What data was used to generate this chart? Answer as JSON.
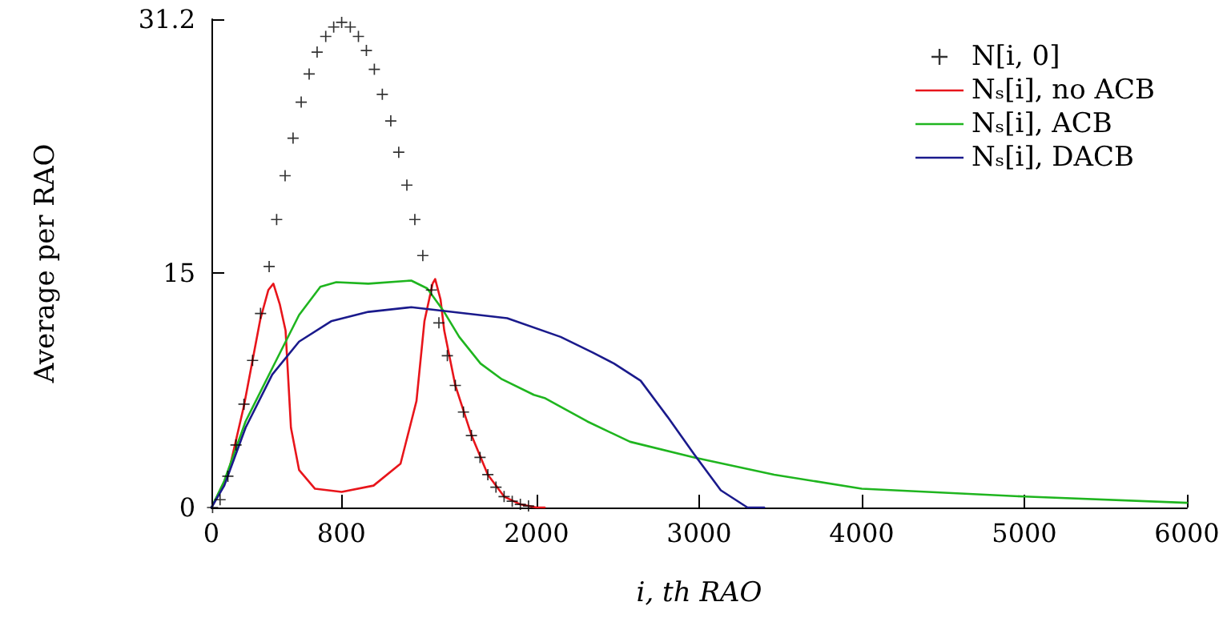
{
  "chart_data": {
    "type": "line",
    "xlabel": "i, th RAO",
    "ylabel": "Average per RAO",
    "xlim": [
      0,
      6000
    ],
    "ylim": [
      0,
      31.2
    ],
    "xticks": [
      0,
      800,
      2000,
      3000,
      4000,
      5000,
      6000
    ],
    "yticks": [
      0,
      15,
      31.2
    ],
    "grid": false,
    "legend": "top right",
    "series": [
      {
        "name": "N[i, 0]",
        "type": "scatter",
        "marker": "cross",
        "color": "#000000",
        "x": [
          7,
          53,
          101,
          151,
          200,
          253,
          302,
          355,
          401,
          453,
          502,
          552,
          601,
          650,
          703,
          752,
          801,
          854,
          904,
          953,
          1002,
          1051,
          1103,
          1152,
          1202,
          1251,
          1300,
          1353,
          1399,
          1451,
          1500,
          1550,
          1599,
          1652,
          1700,
          1750,
          1800,
          1850,
          1900,
          1950
        ],
        "values": [
          0,
          0.5,
          2,
          4,
          6.6,
          9.4,
          12.4,
          15.4,
          18.4,
          21.2,
          23.6,
          25.9,
          27.7,
          29.1,
          30.1,
          30.7,
          31,
          30.7,
          30.1,
          29.2,
          28,
          26.4,
          24.7,
          22.7,
          20.6,
          18.4,
          16.1,
          13.9,
          11.8,
          9.7,
          7.8,
          6.1,
          4.6,
          3.2,
          2.1,
          1.3,
          0.7,
          0.4,
          0.2,
          0.1
        ]
      },
      {
        "name": "Nₛ[i], no ACB",
        "color": "#e8151b",
        "x": [
          0,
          100,
          200,
          300,
          350,
          381,
          420,
          456,
          489,
          539,
          637,
          801,
          997,
          1163,
          1261,
          1310,
          1360,
          1376,
          1409,
          1432,
          1500,
          1600,
          1700,
          1800,
          1900,
          2000,
          2050
        ],
        "values": [
          0,
          2,
          6.5,
          12,
          13.9,
          14.3,
          13,
          11.3,
          5.1,
          2.4,
          1.2,
          1,
          1.4,
          2.8,
          6.8,
          11.9,
          14.3,
          14.6,
          13.3,
          11.3,
          7.8,
          4.6,
          2.1,
          0.7,
          0.2,
          0,
          0
        ]
      },
      {
        "name": "Nₛ[i], ACB",
        "color": "#1fb51f",
        "x": [
          0,
          79,
          210,
          374,
          539,
          670,
          768,
          965,
          1229,
          1327,
          1425,
          1524,
          1655,
          1786,
          1983,
          2049,
          2312,
          2575,
          2969,
          3461,
          4000,
          5000,
          6000
        ],
        "values": [
          0,
          1.7,
          5.5,
          8.9,
          12.3,
          14.1,
          14.4,
          14.3,
          14.5,
          14,
          12.6,
          10.9,
          9.2,
          8.2,
          7.2,
          7,
          5.5,
          4.2,
          3.2,
          2.1,
          1.2,
          0.7,
          0.3
        ]
      },
      {
        "name": "Nₛ[i], DACB",
        "color": "#1a1a8c",
        "x": [
          0,
          79,
          210,
          374,
          539,
          736,
          965,
          1229,
          1819,
          2148,
          2345,
          2476,
          2640,
          2805,
          2969,
          3133,
          3297,
          3400
        ],
        "values": [
          0,
          1.4,
          5.1,
          8.5,
          10.6,
          11.9,
          12.5,
          12.8,
          12.1,
          10.9,
          9.9,
          9.2,
          8.1,
          5.8,
          3.4,
          1.1,
          0,
          0
        ]
      }
    ]
  }
}
